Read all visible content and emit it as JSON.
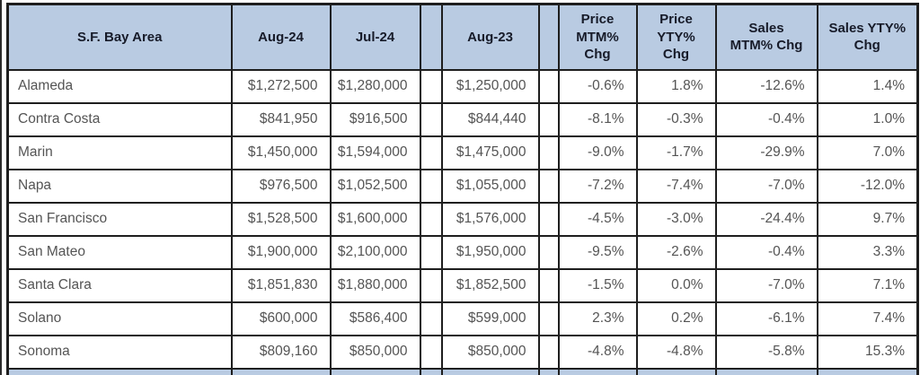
{
  "chart_data": {
    "type": "table",
    "columns": [
      {
        "key": "area",
        "label": "S.F. Bay Area"
      },
      {
        "key": "aug24",
        "label": "Aug-24"
      },
      {
        "key": "jul24",
        "label": "Jul-24"
      },
      {
        "key": "sp1",
        "label": ""
      },
      {
        "key": "aug23",
        "label": "Aug-23"
      },
      {
        "key": "sp2",
        "label": ""
      },
      {
        "key": "price_mtm",
        "label": "Price\nMTM%\nChg"
      },
      {
        "key": "price_yty",
        "label": "Price\nYTY%\nChg"
      },
      {
        "key": "sales_mtm",
        "label": "Sales\nMTM% Chg"
      },
      {
        "key": "sales_yty",
        "label": "Sales YTY%\nChg"
      }
    ],
    "rows": [
      {
        "area": "Alameda",
        "aug24": "$1,272,500",
        "jul24": "$1,280,000",
        "aug23": "$1,250,000",
        "price_mtm": "-0.6%",
        "price_yty": "1.8%",
        "sales_mtm": "-12.6%",
        "sales_yty": "1.4%"
      },
      {
        "area": "Contra Costa",
        "aug24": "$841,950",
        "jul24": "$916,500",
        "aug23": "$844,440",
        "price_mtm": "-8.1%",
        "price_yty": "-0.3%",
        "sales_mtm": "-0.4%",
        "sales_yty": "1.0%"
      },
      {
        "area": "Marin",
        "aug24": "$1,450,000",
        "jul24": "$1,594,000",
        "aug23": "$1,475,000",
        "price_mtm": "-9.0%",
        "price_yty": "-1.7%",
        "sales_mtm": "-29.9%",
        "sales_yty": "7.0%"
      },
      {
        "area": "Napa",
        "aug24": "$976,500",
        "jul24": "$1,052,500",
        "aug23": "$1,055,000",
        "price_mtm": "-7.2%",
        "price_yty": "-7.4%",
        "sales_mtm": "-7.0%",
        "sales_yty": "-12.0%"
      },
      {
        "area": "San Francisco",
        "aug24": "$1,528,500",
        "jul24": "$1,600,000",
        "aug23": "$1,576,000",
        "price_mtm": "-4.5%",
        "price_yty": "-3.0%",
        "sales_mtm": "-24.4%",
        "sales_yty": "9.7%"
      },
      {
        "area": "San Mateo",
        "aug24": "$1,900,000",
        "jul24": "$2,100,000",
        "aug23": "$1,950,000",
        "price_mtm": "-9.5%",
        "price_yty": "-2.6%",
        "sales_mtm": "-0.4%",
        "sales_yty": "3.3%"
      },
      {
        "area": "Santa Clara",
        "aug24": "$1,851,830",
        "jul24": "$1,880,000",
        "aug23": "$1,852,500",
        "price_mtm": "-1.5%",
        "price_yty": "0.0%",
        "sales_mtm": "-7.0%",
        "sales_yty": "7.1%"
      },
      {
        "area": "Solano",
        "aug24": "$600,000",
        "jul24": "$586,400",
        "aug23": "$599,000",
        "price_mtm": "2.3%",
        "price_yty": "0.2%",
        "sales_mtm": "-6.1%",
        "sales_yty": "7.4%"
      },
      {
        "area": "Sonoma",
        "aug24": "$809,160",
        "jul24": "$850,000",
        "aug23": "$850,000",
        "price_mtm": "-4.8%",
        "price_yty": "-4.8%",
        "sales_mtm": "-5.8%",
        "sales_yty": "15.3%"
      }
    ],
    "layout": {
      "grid": "on",
      "header_bg": "#b9cbe2",
      "border_color": "#1e1e1e",
      "header_text_color": "#171b29",
      "body_text_color": "#545454"
    }
  }
}
